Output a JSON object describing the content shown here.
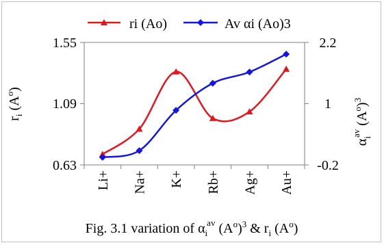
{
  "chart_data": {
    "type": "line",
    "categories": [
      "Li+",
      "Na+",
      "K+",
      "Rb+",
      "Ag+",
      "Au+"
    ],
    "series": [
      {
        "name": "ri (Ao)",
        "axis": "left",
        "color": "#e8141b",
        "marker": "triangle",
        "values": [
          0.71,
          0.9,
          1.33,
          0.98,
          1.03,
          1.35
        ]
      },
      {
        "name": "Av αi (Ao)3",
        "axis": "right",
        "color": "#1414e6",
        "marker": "diamond",
        "values": [
          -0.05,
          0.08,
          0.87,
          1.4,
          1.62,
          1.97
        ]
      }
    ],
    "y_left": {
      "ticks": [
        "1.55",
        "1.09",
        "0.63"
      ],
      "range": [
        0.63,
        1.55
      ],
      "label_main": "r",
      "label_sub": "i",
      "label_rest": " (A",
      "label_sup": "o",
      "label_close": ")"
    },
    "y_right": {
      "ticks": [
        "2.2",
        "1",
        "-0.2"
      ],
      "range": [
        -0.2,
        2.2
      ],
      "label_main": "α",
      "label_sub": "i",
      "label_sup": "av",
      "label_rest": " (A",
      "label_sup2": "o",
      "label_close": ")",
      "label_sup3": "3"
    },
    "grid": false,
    "legend": "top"
  },
  "caption": {
    "p1": "Fig. 3.1 variation of α",
    "p1_sub": "i",
    "p1_sup": "av",
    "p2": " (A",
    "p2_sup": "o",
    "p3": ")",
    "p3_sup": "3",
    "p4": " & r",
    "p4_sub": "i",
    "p5": " (A",
    "p5_sup": "o",
    "p6": ")"
  }
}
